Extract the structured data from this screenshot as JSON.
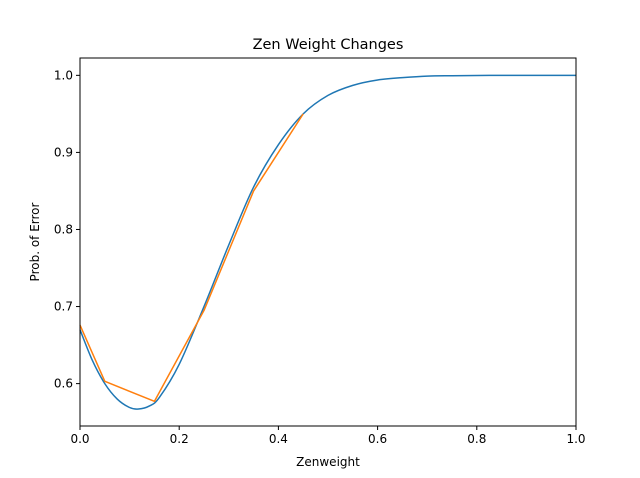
{
  "chart_data": {
    "type": "line",
    "title": "Zen Weight Changes",
    "xlabel": "Zenweight",
    "ylabel": "Prob. of Error",
    "xlim": [
      0,
      1
    ],
    "ylim": [
      0.545,
      1.0225
    ],
    "xticks": [
      0,
      0.2,
      0.4,
      0.6,
      0.8,
      1.0
    ],
    "xtick_labels": [
      "0.0",
      "0.2",
      "0.4",
      "0.6",
      "0.8",
      "1.0"
    ],
    "yticks": [
      0.6,
      0.7,
      0.8,
      0.9,
      1.0
    ],
    "ytick_labels": [
      "0.6",
      "0.7",
      "0.8",
      "0.9",
      "1.0"
    ],
    "grid": false,
    "legend": false,
    "series": [
      {
        "color": "#1f77b4",
        "style": "smooth",
        "x": [
          0,
          0.025,
          0.05,
          0.075,
          0.1,
          0.118,
          0.14,
          0.16,
          0.2,
          0.25,
          0.3,
          0.35,
          0.4,
          0.45,
          0.5,
          0.55,
          0.6,
          0.65,
          0.7,
          0.75,
          0.8,
          0.85,
          0.9,
          0.95,
          1.0
        ],
        "y": [
          0.67,
          0.63,
          0.6,
          0.58,
          0.569,
          0.567,
          0.571,
          0.582,
          0.625,
          0.7,
          0.78,
          0.855,
          0.91,
          0.95,
          0.974,
          0.987,
          0.994,
          0.997,
          0.999,
          0.9995,
          0.9998,
          1.0,
          1.0,
          1.0,
          1.0
        ]
      },
      {
        "color": "#ff7f0e",
        "style": "linear",
        "x": [
          0,
          0.05,
          0.15,
          0.25,
          0.35,
          0.45
        ],
        "y": [
          0.676,
          0.603,
          0.577,
          0.695,
          0.85,
          0.95
        ]
      }
    ]
  }
}
